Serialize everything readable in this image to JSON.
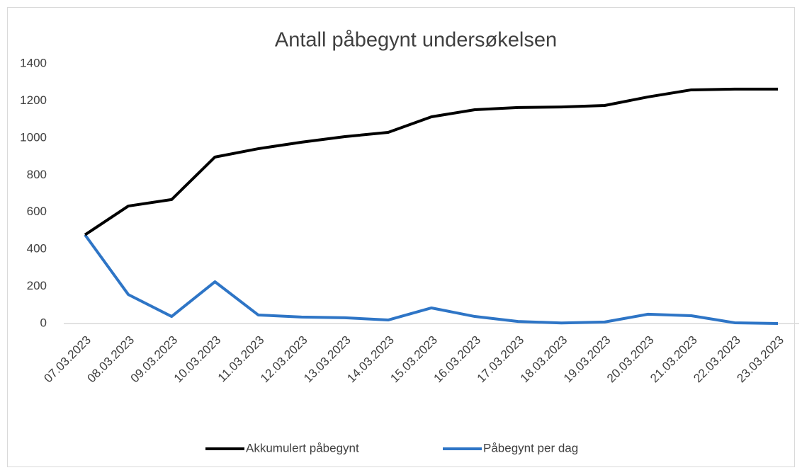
{
  "chart_data": {
    "type": "line",
    "title": "Antall påbegynt undersøkelsen",
    "categories": [
      "07.03.2023",
      "08.03.2023",
      "09.03.2023",
      "10.03.2023",
      "11.03.2023",
      "12.03.2023",
      "13.03.2023",
      "14.03.2023",
      "15.03.2023",
      "16.03.2023",
      "17.03.2023",
      "18.03.2023",
      "19.03.2023",
      "20.03.2023",
      "21.03.2023",
      "22.03.2023",
      "23.03.2023"
    ],
    "series": [
      {
        "name": "Akkumulert påbegynt",
        "color": "#000000",
        "values": [
          478,
          633,
          668,
          897,
          942,
          977,
          1007,
          1030,
          1114,
          1152,
          1164,
          1167,
          1175,
          1221,
          1259,
          1263,
          1263
        ]
      },
      {
        "name": "Påbegynt per dag",
        "color": "#2e75c6",
        "values": [
          478,
          156,
          38,
          225,
          46,
          35,
          31,
          19,
          84,
          38,
          11,
          3,
          8,
          50,
          42,
          4,
          0
        ]
      }
    ],
    "ylim": [
      0,
      1400
    ],
    "yticks": [
      0,
      200,
      400,
      600,
      800,
      1000,
      1200,
      1400
    ],
    "grid": false,
    "legend": "bottom"
  }
}
